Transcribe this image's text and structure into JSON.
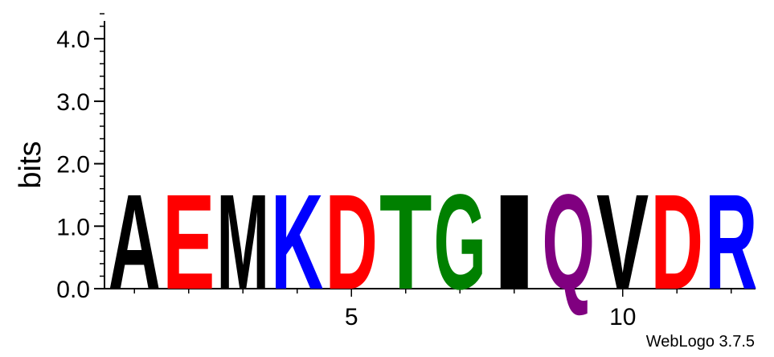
{
  "chart_data": {
    "type": "sequence-logo",
    "ylabel": "bits",
    "ylim": [
      0,
      4.32
    ],
    "y_ticks": [
      "0.0",
      "1.0",
      "2.0",
      "3.0",
      "4.0"
    ],
    "x_tick_labels": [
      "5",
      "10"
    ],
    "x_tick_positions": [
      5,
      10
    ],
    "positions": [
      1,
      2,
      3,
      4,
      5,
      6,
      7,
      8,
      9,
      10,
      11,
      12
    ],
    "letters": [
      "A",
      "E",
      "M",
      "K",
      "D",
      "T",
      "G",
      "I",
      "Q",
      "V",
      "D",
      "R"
    ],
    "values": [
      1.8,
      1.8,
      1.8,
      1.8,
      1.8,
      1.8,
      1.8,
      1.8,
      1.8,
      1.8,
      1.8,
      1.8
    ],
    "letter_colors": {
      "A": "#000000",
      "E": "#ff0000",
      "M": "#000000",
      "K": "#0000ff",
      "D": "#ff0000",
      "T": "#008000",
      "G": "#008000",
      "I": "#000000",
      "Q": "#800080",
      "V": "#000000",
      "R": "#0000ff"
    }
  },
  "credit": "WebLogo 3.7.5"
}
